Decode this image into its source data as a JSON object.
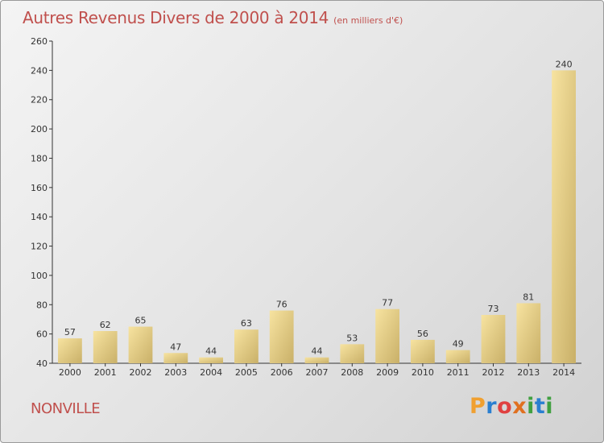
{
  "title": "Autres Revenus Divers de 2000 à 2014",
  "unit_note": "(en milliers d'€)",
  "commune": "NONVILLE",
  "logo_text": "Proxiti",
  "colors": {
    "title": "#c0504d",
    "bar_light": "#f7e3a0",
    "bar_dark": "#c9b068",
    "logo_letters": [
      "#f0a030",
      "#2a7fd0",
      "#e04040",
      "#e07020",
      "#40a040",
      "#2a7fd0",
      "#40a040"
    ]
  },
  "chart_data": {
    "type": "bar",
    "title": "Autres Revenus Divers de 2000 à 2014",
    "subtitle": "(en milliers d'€)",
    "xlabel": "",
    "ylabel": "",
    "categories": [
      "2000",
      "2001",
      "2002",
      "2003",
      "2004",
      "2005",
      "2006",
      "2007",
      "2008",
      "2009",
      "2010",
      "2011",
      "2012",
      "2013",
      "2014"
    ],
    "values": [
      57,
      62,
      65,
      47,
      44,
      63,
      76,
      44,
      53,
      77,
      56,
      49,
      73,
      81,
      240
    ],
    "ylim": [
      40,
      260
    ],
    "yticks": [
      40,
      60,
      80,
      100,
      120,
      140,
      160,
      180,
      200,
      220,
      240,
      260
    ],
    "grid": false,
    "data_labels": true
  }
}
